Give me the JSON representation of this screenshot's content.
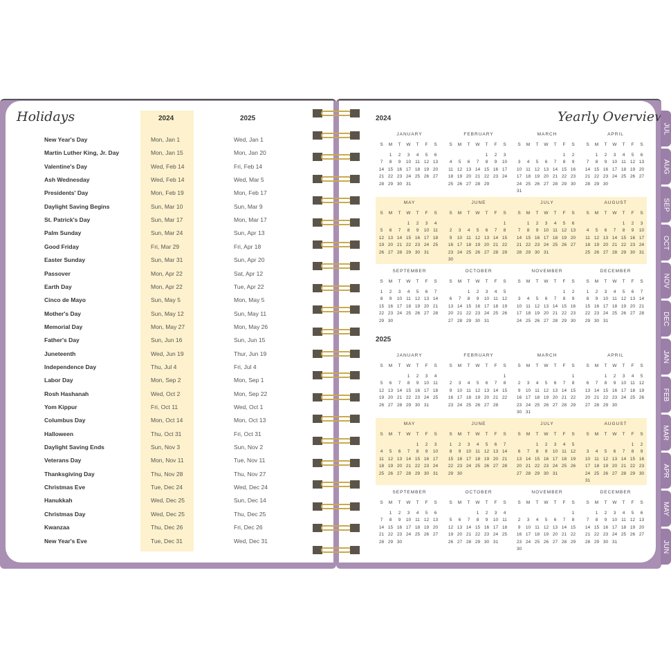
{
  "holidays": {
    "title": "Holidays",
    "years": [
      "2024",
      "2025"
    ],
    "rows": [
      [
        "New Year's Day",
        "Mon, Jan 1",
        "Wed, Jan 1"
      ],
      [
        "Martin Luther King, Jr. Day",
        "Mon, Jan 15",
        "Mon, Jan 20"
      ],
      [
        "Valentine's Day",
        "Wed, Feb 14",
        "Fri, Feb 14"
      ],
      [
        "Ash Wednesday",
        "Wed, Feb 14",
        "Wed, Mar 5"
      ],
      [
        "Presidents' Day",
        "Mon, Feb 19",
        "Mon, Feb 17"
      ],
      [
        "Daylight Saving Begins",
        "Sun, Mar 10",
        "Sun, Mar 9"
      ],
      [
        "St. Patrick's Day",
        "Sun, Mar 17",
        "Mon, Mar 17"
      ],
      [
        "Palm Sunday",
        "Sun, Mar 24",
        "Sun, Apr 13"
      ],
      [
        "Good Friday",
        "Fri, Mar 29",
        "Fri, Apr 18"
      ],
      [
        "Easter Sunday",
        "Sun, Mar 31",
        "Sun, Apr 20"
      ],
      [
        "Passover",
        "Mon, Apr 22",
        "Sat, Apr 12"
      ],
      [
        "Earth Day",
        "Mon, Apr 22",
        "Tue, Apr 22"
      ],
      [
        "Cinco de Mayo",
        "Sun, May 5",
        "Mon, May 5"
      ],
      [
        "Mother's Day",
        "Sun, May 12",
        "Sun, May 11"
      ],
      [
        "Memorial Day",
        "Mon, May 27",
        "Mon, May 26"
      ],
      [
        "Father's Day",
        "Sun, Jun 16",
        "Sun, Jun 15"
      ],
      [
        "Juneteenth",
        "Wed, Jun 19",
        "Thur, Jun 19"
      ],
      [
        "Independence Day",
        "Thu, Jul 4",
        "Fri, Jul 4"
      ],
      [
        "Labor Day",
        "Mon, Sep 2",
        "Mon, Sep 1"
      ],
      [
        "Rosh Hashanah",
        "Wed, Oct 2",
        "Mon, Sep 22"
      ],
      [
        "Yom Kippur",
        "Fri, Oct 11",
        "Wed, Oct 1"
      ],
      [
        "Columbus Day",
        "Mon, Oct 14",
        "Mon, Oct 13"
      ],
      [
        "Halloween",
        "Thu, Oct 31",
        "Fri, Oct 31"
      ],
      [
        "Daylight Saving Ends",
        "Sun, Nov 3",
        "Sun, Nov 2"
      ],
      [
        "Veterans Day",
        "Mon, Nov 11",
        "Tue, Nov 11"
      ],
      [
        "Thanksgiving Day",
        "Thu, Nov 28",
        "Thu, Nov 27"
      ],
      [
        "Christmas Eve",
        "Tue, Dec 24",
        "Wed, Dec 24"
      ],
      [
        "Hanukkah",
        "Wed, Dec 25",
        "Sun, Dec 14"
      ],
      [
        "Christmas Day",
        "Wed, Dec 25",
        "Thu, Dec 25"
      ],
      [
        "Kwanzaa",
        "Thu, Dec 26",
        "Fri, Dec 26"
      ],
      [
        "New Year's Eve",
        "Tue, Dec 31",
        "Wed, Dec 31"
      ]
    ]
  },
  "overview": {
    "title": "Yearly Overview",
    "years": [
      2024,
      2025
    ],
    "months": [
      "JANUARY",
      "FEBRUARY",
      "MARCH",
      "APRIL",
      "MAY",
      "JUNE",
      "JULY",
      "AUGUST",
      "SEPTEMBER",
      "OCTOBER",
      "NOVEMBER",
      "DECEMBER"
    ],
    "weekdays": [
      "S",
      "M",
      "T",
      "W",
      "T",
      "F",
      "S"
    ]
  },
  "tabs": [
    "JUL",
    "AUG",
    "SEP",
    "OCT",
    "NOV",
    "DEC",
    "JAN",
    "FEB",
    "MAR",
    "APR",
    "MAY",
    "JUN"
  ],
  "colors": {
    "cover": "#a98fb3",
    "tab": "#9c7fa8",
    "highlight": "#fdf2cd",
    "wire": "#c9a94a"
  }
}
